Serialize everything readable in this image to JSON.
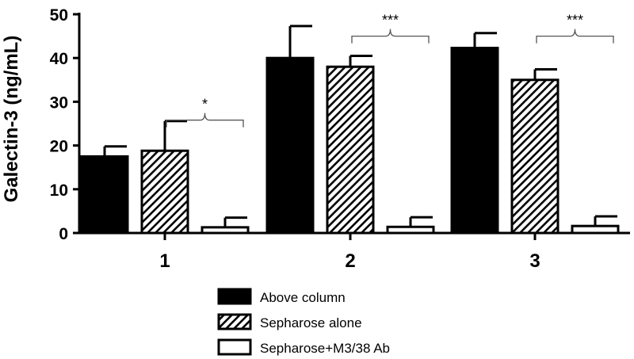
{
  "chart_data": {
    "type": "bar",
    "categories": [
      "1",
      "2",
      "3"
    ],
    "series": [
      {
        "name": "Above column",
        "fill": "solid",
        "color": "#000000",
        "values": [
          17.5,
          40,
          42.3
        ],
        "errors": [
          2.3,
          7.3,
          3.4
        ]
      },
      {
        "name": "Sepharose alone",
        "fill": "hatch",
        "color": "#000000",
        "values": [
          18.8,
          38,
          35
        ],
        "errors": [
          6.8,
          2.5,
          2.4
        ]
      },
      {
        "name": "Sepharose+M3/38 Ab",
        "fill": "open",
        "color": "#000000",
        "values": [
          1.3,
          1.4,
          1.6
        ],
        "errors": [
          2.2,
          2.2,
          2.2
        ]
      }
    ],
    "ylabel": "Galectin-3 (ng/mL)",
    "xlabel": "",
    "title": "",
    "ylim": [
      0,
      50
    ],
    "yticks": [
      "0",
      "10",
      "20",
      "30",
      "40",
      "50"
    ],
    "significance": [
      "*",
      "***",
      "***"
    ],
    "grid": false,
    "legend_position": "bottom-center"
  }
}
